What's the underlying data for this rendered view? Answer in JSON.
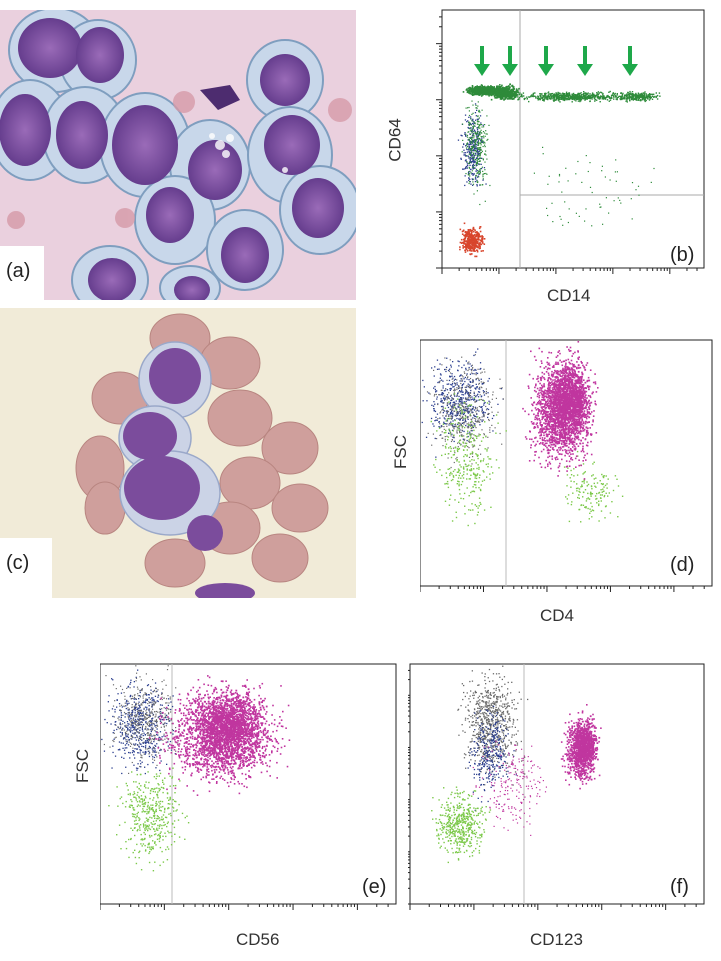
{
  "panels": {
    "a": {
      "label": "(a)"
    },
    "b": {
      "label": "(b)",
      "x_axis": "CD14",
      "y_axis": "CD64"
    },
    "c": {
      "label": "(c)"
    },
    "d": {
      "label": "(d)",
      "x_axis": "CD4",
      "y_axis": "FSC"
    },
    "e": {
      "label": "(e)",
      "x_axis": "CD56",
      "y_axis": "FSC"
    },
    "f": {
      "label": "(f)",
      "x_axis": "CD123"
    }
  },
  "colors": {
    "green_population": "#2e8b3a",
    "arrow_green": "#1ea84a",
    "red_population": "#d8452c",
    "blue_population": "#2c3f8f",
    "magenta_population": "#c0369f",
    "light_green_population": "#7cc94a",
    "smear_background_a": "#e9c7d6",
    "smear_background_c": "#f0ead8",
    "cell_nucleus": "#7a4e9b",
    "red_cell": "#c98f8f"
  }
}
